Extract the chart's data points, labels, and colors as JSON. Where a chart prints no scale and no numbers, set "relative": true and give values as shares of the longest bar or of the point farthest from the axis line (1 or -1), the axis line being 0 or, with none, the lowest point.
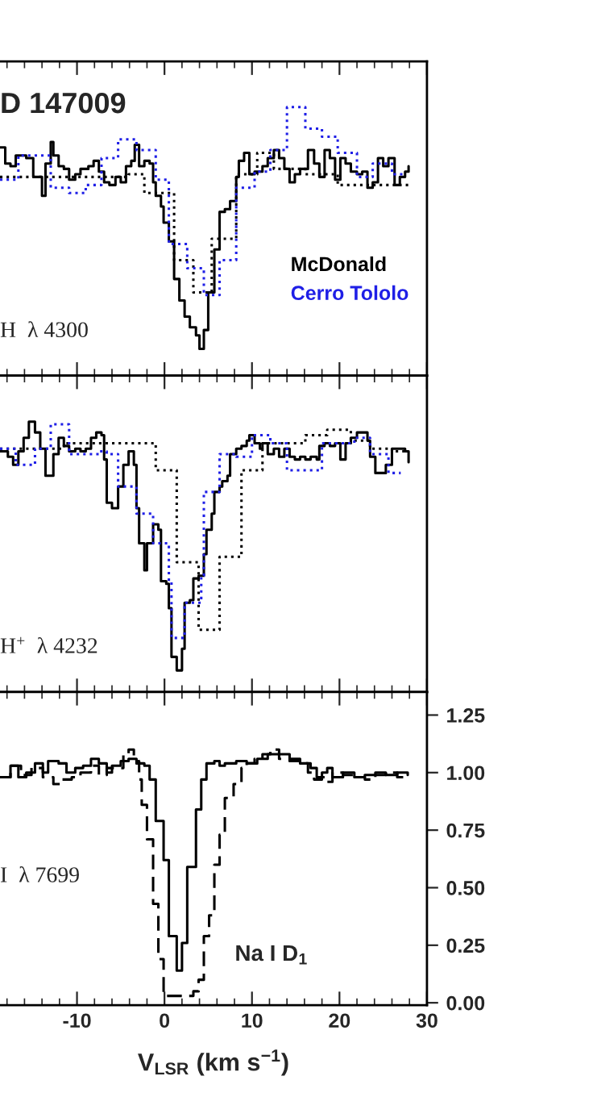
{
  "chart_data": [
    {
      "type": "step",
      "relative": true,
      "xlim": [
        -18.8,
        30
      ],
      "xticks": [
        -10,
        0,
        10,
        20,
        30
      ],
      "tick_labels": false,
      "legend": "lower right",
      "grid": false,
      "annotations": [
        "D 147009",
        "H  λ 4300"
      ],
      "series": [
        {
          "name": "McDonald",
          "color": "#000000",
          "line_style": "solid",
          "x": [
            -18.8,
            -18.2,
            -17.6,
            -17.0,
            -15.8,
            -15.0,
            -14.4,
            -14.0,
            -13.6,
            -13.0,
            -12.7,
            -12.1,
            -11.5,
            -10.9,
            -10.2,
            -9.6,
            -8.7,
            -8.1,
            -7.5,
            -6.9,
            -6.3,
            -5.6,
            -5.0,
            -4.4,
            -3.8,
            -3.4,
            -2.9,
            -2.3,
            -1.7,
            -1.3,
            -1.0,
            -0.4,
            -0.1,
            0.5,
            1.1,
            1.7,
            2.3,
            2.9,
            3.6,
            4.0,
            4.5,
            5.0,
            5.7,
            6.3,
            6.9,
            7.5,
            8.2,
            8.5,
            9.1,
            9.7,
            10.3,
            11.2,
            11.8,
            12.5,
            13.1,
            13.7,
            14.3,
            14.9,
            15.5,
            16.4,
            17.1,
            17.7,
            18.3,
            18.9,
            19.5,
            20.1,
            20.7,
            21.3,
            22.0,
            22.6,
            23.2,
            23.8,
            24.4,
            25.0,
            25.6,
            26.3,
            26.9,
            27.5,
            27.9
          ],
          "values": [
            0.85,
            0.79,
            0.78,
            0.82,
            0.81,
            0.74,
            0.74,
            0.67,
            0.79,
            0.87,
            0.82,
            0.78,
            0.77,
            0.73,
            0.75,
            0.77,
            0.78,
            0.8,
            0.76,
            0.72,
            0.71,
            0.74,
            0.72,
            0.78,
            0.8,
            0.86,
            0.78,
            0.8,
            0.79,
            0.72,
            0.67,
            0.63,
            0.57,
            0.5,
            0.36,
            0.28,
            0.22,
            0.18,
            0.15,
            0.1,
            0.17,
            0.31,
            0.47,
            0.61,
            0.62,
            0.65,
            0.74,
            0.8,
            0.83,
            0.75,
            0.76,
            0.78,
            0.81,
            0.84,
            0.81,
            0.77,
            0.72,
            0.75,
            0.77,
            0.84,
            0.79,
            0.74,
            0.84,
            0.81,
            0.73,
            0.81,
            0.79,
            0.76,
            0.75,
            0.76,
            0.7,
            0.72,
            0.81,
            0.78,
            0.81,
            0.71,
            0.74,
            0.76,
            0.78
          ]
        },
        {
          "color": "#000000",
          "line_style": "dotted",
          "x": [
            -18.8,
            -4.1,
            -2.3,
            1.1,
            3.3,
            5.4,
            8.2,
            10.6,
            12.5,
            16.1,
            19.8,
            27.9
          ],
          "values": [
            0.74,
            0.75,
            0.68,
            0.43,
            0.31,
            0.51,
            0.75,
            0.83,
            0.77,
            0.75,
            0.71,
            0.71
          ]
        },
        {
          "name": "Cerro Tololo",
          "color": "#1f1fe6",
          "line_style": "dotted",
          "x": [
            -18.8,
            -16.7,
            -13.0,
            -10.9,
            -9.0,
            -7.2,
            -5.3,
            -3.2,
            -1.0,
            0.5,
            2.6,
            4.5,
            6.3,
            8.2,
            10.3,
            12.1,
            14.0,
            16.1,
            18.0,
            19.8,
            22.0,
            23.8,
            26.0,
            27.5
          ],
          "values": [
            0.73,
            0.82,
            0.7,
            0.68,
            0.71,
            0.81,
            0.88,
            0.84,
            0.73,
            0.49,
            0.4,
            0.3,
            0.43,
            0.7,
            0.76,
            0.84,
            1.0,
            0.92,
            0.89,
            0.83,
            0.74,
            0.79,
            0.75,
            0.75
          ]
        }
      ]
    },
    {
      "type": "step",
      "relative": true,
      "xlim": [
        -18.8,
        30
      ],
      "xticks": [
        -10,
        0,
        10,
        20,
        30
      ],
      "tick_labels": false,
      "grid": false,
      "annotations": [
        "H$^{+}$  λ 4232"
      ],
      "series": [
        {
          "color": "#000000",
          "line_style": "solid",
          "x": [
            -18.8,
            -17.9,
            -17.3,
            -16.7,
            -16.1,
            -15.5,
            -14.8,
            -14.2,
            -13.6,
            -13.0,
            -12.7,
            -12.1,
            -11.5,
            -10.9,
            -10.2,
            -9.6,
            -9.0,
            -8.4,
            -7.8,
            -7.2,
            -6.9,
            -6.6,
            -6.0,
            -5.3,
            -4.7,
            -4.1,
            -3.5,
            -3.2,
            -2.9,
            -2.3,
            -2.0,
            -1.3,
            -0.7,
            -0.4,
            0.2,
            0.5,
            0.8,
            1.4,
            2.0,
            2.3,
            2.9,
            3.3,
            3.9,
            4.5,
            4.8,
            5.4,
            5.7,
            6.3,
            6.6,
            7.2,
            7.5,
            8.2,
            8.8,
            9.4,
            9.7,
            10.3,
            10.9,
            11.2,
            11.8,
            12.5,
            13.1,
            13.7,
            14.3,
            14.9,
            15.5,
            16.1,
            16.7,
            17.4,
            17.7,
            18.3,
            18.9,
            19.5,
            20.1,
            20.7,
            21.3,
            22.0,
            22.9,
            23.2,
            23.5,
            24.1,
            24.7,
            25.3,
            26.0,
            26.9,
            27.5,
            27.9
          ],
          "values": [
            0.89,
            0.87,
            0.84,
            0.89,
            0.94,
            1.0,
            0.96,
            0.9,
            0.8,
            0.8,
            0.88,
            0.94,
            0.91,
            0.89,
            0.9,
            0.89,
            0.9,
            0.94,
            0.96,
            0.95,
            0.86,
            0.7,
            0.68,
            0.76,
            0.84,
            0.89,
            0.84,
            0.68,
            0.55,
            0.45,
            0.55,
            0.62,
            0.6,
            0.41,
            0.4,
            0.31,
            0.13,
            0.08,
            0.16,
            0.33,
            0.34,
            0.42,
            0.43,
            0.51,
            0.6,
            0.66,
            0.74,
            0.76,
            0.78,
            0.8,
            0.88,
            0.9,
            0.91,
            0.93,
            0.95,
            0.92,
            0.9,
            0.92,
            0.88,
            0.9,
            0.87,
            0.9,
            0.87,
            0.86,
            0.87,
            0.86,
            0.87,
            0.86,
            0.91,
            0.92,
            0.91,
            0.92,
            0.86,
            0.92,
            0.94,
            0.96,
            0.96,
            0.93,
            0.87,
            0.81,
            0.81,
            0.84,
            0.9,
            0.9,
            0.89,
            0.85
          ]
        },
        {
          "color": "#000000",
          "line_style": "dotted",
          "x": [
            -18.8,
            -11.5,
            -1.0,
            1.4,
            3.9,
            6.3,
            8.8,
            11.2,
            16.1,
            18.6,
            21.3,
            23.5,
            26.0,
            27.9
          ],
          "values": [
            0.9,
            0.92,
            0.82,
            0.48,
            0.23,
            0.5,
            0.82,
            0.92,
            0.95,
            0.97,
            0.93,
            0.9,
            0.89,
            0.89
          ]
        },
        {
          "color": "#1f1fe6",
          "line_style": "dotted",
          "x": [
            -18.8,
            -17.0,
            -14.8,
            -13.0,
            -10.9,
            -7.5,
            -6.6,
            -5.3,
            -3.2,
            -1.3,
            0.5,
            0.8,
            2.3,
            4.2,
            4.5,
            6.3,
            8.2,
            10.0,
            12.1,
            14.0,
            18.0,
            21.7,
            23.5,
            25.6,
            27.0
          ],
          "values": [
            0.9,
            0.84,
            0.9,
            0.99,
            0.88,
            0.89,
            0.88,
            0.76,
            0.66,
            0.55,
            0.41,
            0.2,
            0.33,
            0.43,
            0.74,
            0.88,
            0.87,
            0.95,
            0.92,
            0.82,
            0.92,
            0.94,
            0.88,
            0.81,
            0.81
          ]
        }
      ]
    },
    {
      "type": "step",
      "xlim": [
        -18.8,
        30
      ],
      "xticks": [
        -10,
        0,
        10,
        20,
        30
      ],
      "ylim": [
        -0.01,
        1.35
      ],
      "yticks": [
        {
          "value": 0,
          "label": "0.00"
        },
        {
          "value": 0.25,
          "label": "0.25"
        },
        {
          "value": 0.5,
          "label": "0.50"
        },
        {
          "value": 0.75,
          "label": "0.75"
        },
        {
          "value": 1,
          "label": "1.00"
        },
        {
          "value": 1.25,
          "label": "1.25"
        }
      ],
      "xlabel": "V$_{LSR}$ (km s$^{−1}$)",
      "grid": false,
      "annotations": [
        "I  λ 7699",
        "Na I D$_{1}$"
      ],
      "series": [
        {
          "color": "#000000",
          "line_style": "solid",
          "x": [
            -18.8,
            -17.6,
            -16.7,
            -15.8,
            -14.8,
            -13.9,
            -13.3,
            -12.1,
            -11.2,
            -10.2,
            -9.3,
            -8.4,
            -7.5,
            -6.6,
            -6.0,
            -5.0,
            -4.1,
            -3.2,
            -2.3,
            -1.7,
            -1.0,
            -0.1,
            0.5,
            1.4,
            2.0,
            2.6,
            3.6,
            4.2,
            4.8,
            5.7,
            6.3,
            6.9,
            8.2,
            9.4,
            10.6,
            11.8,
            13.1,
            14.3,
            15.5,
            16.7,
            17.4,
            18.0,
            18.6,
            19.2,
            20.4,
            21.7,
            22.9,
            24.1,
            25.3,
            26.6,
            27.8
          ],
          "values": [
            0.98,
            1.03,
            0.98,
            1.0,
            1.04,
            1.0,
            1.05,
            1.04,
            1.0,
            1.02,
            1.03,
            1.06,
            1.04,
            1.0,
            1.03,
            1.05,
            1.06,
            1.04,
            1.03,
            0.97,
            0.79,
            0.62,
            0.29,
            0.14,
            0.26,
            0.59,
            0.84,
            0.97,
            1.04,
            1.05,
            1.03,
            1.04,
            1.05,
            1.04,
            1.06,
            1.08,
            1.08,
            1.06,
            1.04,
            1.02,
            0.98,
            1.0,
            1.02,
            0.98,
            1.0,
            0.98,
            0.99,
            1.0,
            0.99,
            1.0,
            0.99
          ]
        },
        {
          "color": "#000000",
          "line_style": "dashed",
          "x": [
            -18.8,
            -17.6,
            -16.4,
            -15.2,
            -13.9,
            -12.7,
            -11.8,
            -10.6,
            -9.6,
            -8.4,
            -7.5,
            -6.6,
            -5.6,
            -4.7,
            -4.1,
            -3.5,
            -2.9,
            -2.6,
            -2.0,
            -1.3,
            -0.7,
            -0.1,
            0.8,
            2.3,
            3.3,
            3.9,
            4.5,
            5.1,
            5.7,
            6.3,
            6.9,
            7.9,
            8.8,
            9.4,
            10.3,
            11.2,
            12.1,
            13.1,
            14.3,
            15.5,
            16.4,
            17.1,
            18.0,
            18.6,
            19.2,
            20.4,
            21.7,
            22.9,
            24.1,
            25.3,
            26.6,
            27.5
          ],
          "values": [
            0.98,
            1.03,
            0.99,
            1.02,
            0.98,
            0.95,
            0.97,
            0.98,
            1.0,
            1.03,
            0.99,
            1.02,
            1.02,
            1.08,
            1.1,
            1.05,
            0.97,
            0.86,
            0.71,
            0.43,
            0.19,
            0.03,
            0.03,
            0.03,
            0.05,
            0.1,
            0.29,
            0.38,
            0.6,
            0.73,
            0.89,
            0.95,
            1.02,
            1.04,
            1.06,
            1.08,
            1.1,
            1.06,
            1.05,
            1.04,
            1.0,
            0.97,
            0.98,
            0.96,
            1.0,
            0.99,
            0.98,
            0.97,
            0.99,
            1.0,
            0.98,
            0.98
          ]
        }
      ]
    }
  ]
}
